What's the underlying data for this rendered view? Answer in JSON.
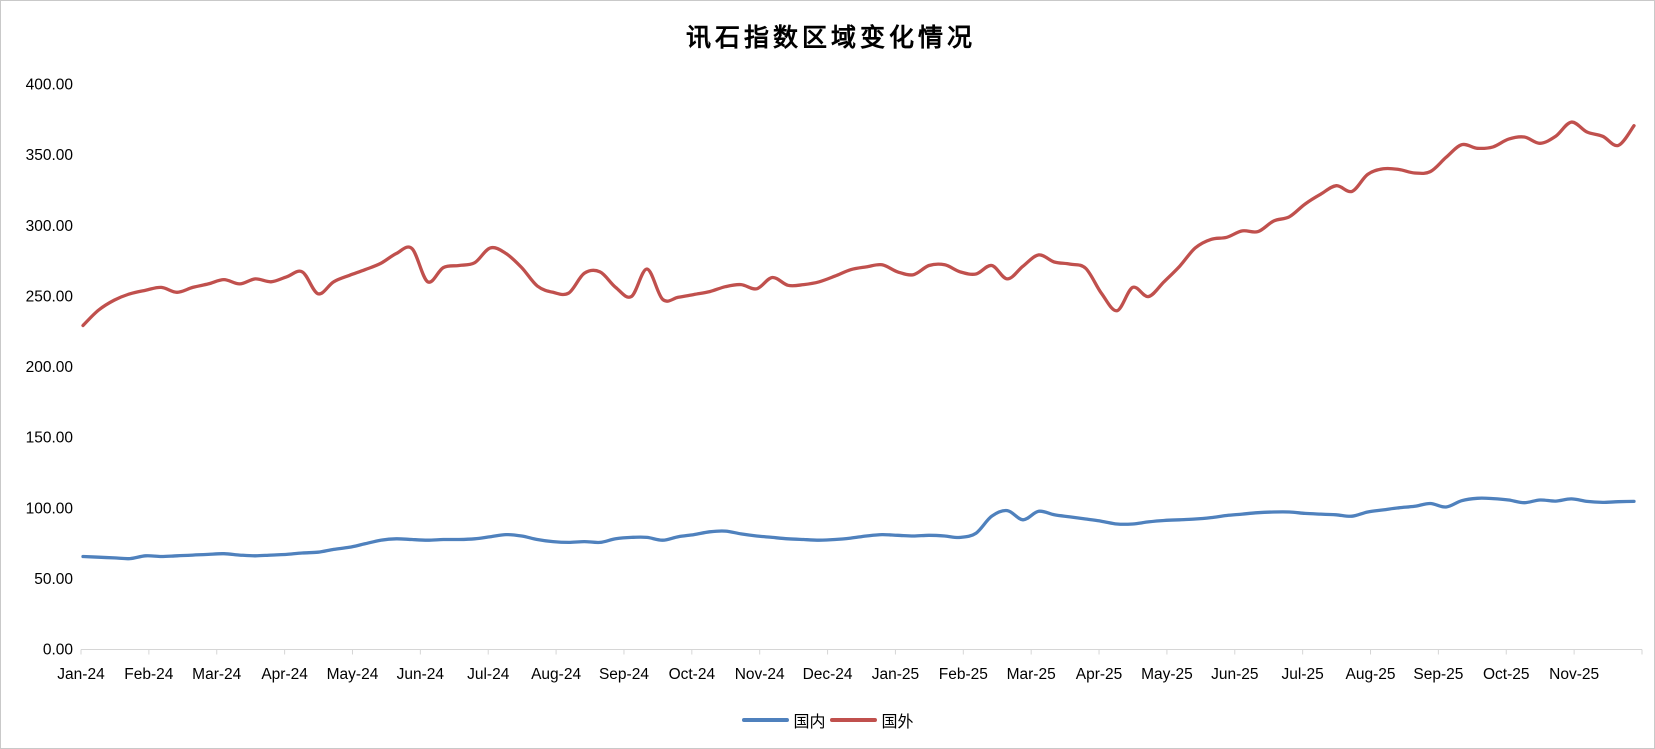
{
  "chart_data": {
    "type": "line",
    "title": "讯石指数区域变化情况",
    "legend_position": "bottom",
    "background_color": "#ffffff",
    "axis_line_color": "#d6d6d6",
    "label_color": "#000000",
    "y_axis": {
      "min": 0,
      "max": 400,
      "step": 50
    },
    "y_tick_labels": [
      "0.00",
      "50.00",
      "100.00",
      "150.00",
      "200.00",
      "250.00",
      "300.00",
      "350.00",
      "400.00"
    ],
    "categories": [
      "Jan-24",
      "Feb-24",
      "Mar-24",
      "Apr-24",
      "May-24",
      "Jun-24",
      "Jul-24",
      "Aug-24",
      "Sep-24",
      "Oct-24",
      "Nov-24",
      "Dec-24",
      "Jan-25",
      "Feb-25",
      "Mar-25",
      "Apr-25",
      "May-25",
      "Jun-25",
      "Jul-25",
      "Aug-25",
      "Sep-25",
      "Oct-25",
      "Nov-25"
    ],
    "series": [
      {
        "name": "国内",
        "color": "#4F81BD",
        "values": [
          65.5,
          65,
          64.5,
          64,
          66,
          65.5,
          66,
          66.5,
          67,
          67.5,
          66.5,
          66,
          66.5,
          67,
          68,
          68.5,
          70.5,
          72,
          74.5,
          77,
          78,
          77.5,
          77,
          77.5,
          77.5,
          78,
          79.5,
          81,
          80,
          77.5,
          76,
          75.5,
          76,
          75.5,
          78,
          79,
          79,
          77,
          79.5,
          81,
          83,
          83.5,
          81.5,
          80,
          79,
          78,
          77.5,
          77,
          77.5,
          78.5,
          80,
          81,
          80.5,
          80,
          80.5,
          80,
          79,
          82,
          94,
          98,
          91.5,
          97.5,
          95,
          93.5,
          92,
          90.5,
          88.5,
          88.5,
          90,
          91,
          91.5,
          92,
          93,
          94.5,
          95.5,
          96.5,
          97,
          97,
          96,
          95.5,
          95,
          94,
          97,
          98.5,
          100,
          101,
          103,
          100.5,
          105,
          106.7,
          106.5,
          105.5,
          103.6,
          105.5,
          104.7,
          106.3,
          104.5,
          103.8,
          104.3,
          104.5
        ]
      },
      {
        "name": "国外",
        "color": "#C0504D",
        "values": [
          229,
          240,
          247,
          251.5,
          254,
          256,
          252.5,
          256,
          258.5,
          261.5,
          258.5,
          262,
          260,
          263.5,
          267,
          251.5,
          260,
          264.5,
          268.5,
          273,
          280,
          283.5,
          260,
          270,
          271.5,
          273.5,
          284,
          280,
          270,
          257,
          252.5,
          252,
          266,
          267,
          256,
          249.5,
          269,
          247.5,
          249,
          251,
          253,
          256.5,
          258,
          255,
          263,
          257.5,
          258,
          260,
          264,
          268.5,
          270.5,
          272,
          267,
          265,
          271.5,
          272,
          267,
          265.5,
          271.5,
          262,
          271,
          279,
          274,
          272.5,
          269.5,
          252,
          239.5,
          256,
          249.5,
          260,
          271,
          284,
          290,
          291.5,
          296,
          295.5,
          303,
          306,
          315,
          322,
          328,
          324,
          336,
          340,
          339.5,
          337,
          338,
          348,
          357,
          354.5,
          355.5,
          361,
          362.5,
          358,
          363,
          373,
          366,
          363,
          356.5,
          370.5
        ]
      }
    ]
  }
}
